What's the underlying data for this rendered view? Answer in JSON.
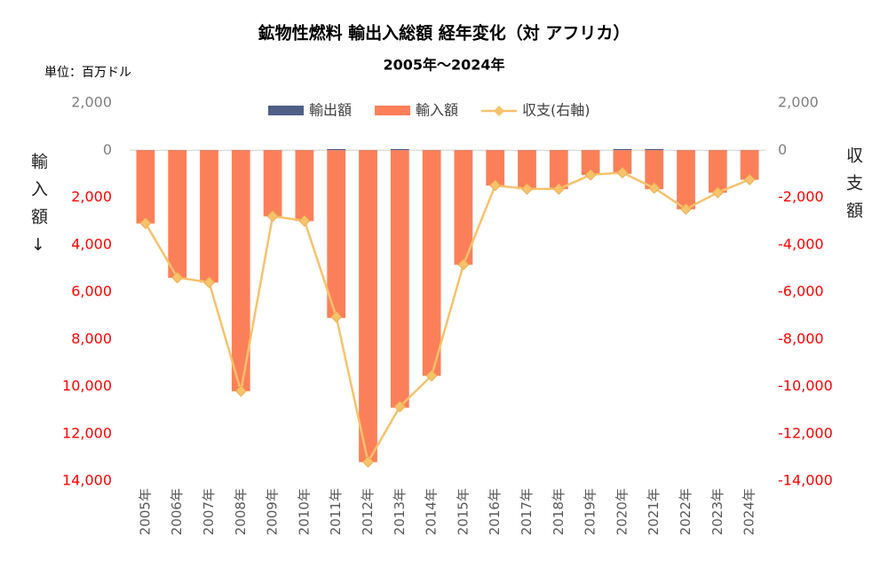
{
  "chart_data": {
    "type": "bar_line",
    "title": "鉱物性燃料 輸出入総額 経年変化（対 アフリカ）",
    "subtitle": "2005年～2024年",
    "unit_label": "単位：百万ドル",
    "ylabel": "輸入額↓",
    "y2label": "収支額",
    "categories": [
      "2005年",
      "2006年",
      "2007年",
      "2008年",
      "2009年",
      "2010年",
      "2011年",
      "2012年",
      "2013年",
      "2014年",
      "2015年",
      "2016年",
      "2017年",
      "2018年",
      "2019年",
      "2020年",
      "2021年",
      "2022年",
      "2023年",
      "2024年"
    ],
    "series": [
      {
        "name": "輸出額",
        "color": "#4f5f86",
        "values": [
          10,
          10,
          10,
          10,
          10,
          10,
          50,
          10,
          50,
          10,
          10,
          10,
          10,
          10,
          10,
          50,
          50,
          10,
          10,
          10
        ]
      },
      {
        "name": "輸入額",
        "color": "#fb8059",
        "values": [
          -3100,
          -5400,
          -5600,
          -10200,
          -2800,
          -3000,
          -7100,
          -13200,
          -10900,
          -9550,
          -4850,
          -1500,
          -1650,
          -1650,
          -1050,
          -1000,
          -1650,
          -2500,
          -1800,
          -1250
        ]
      },
      {
        "name": "収支(右軸)",
        "color": "#f6c26b",
        "axis": "y2",
        "values": [
          -3090,
          -5390,
          -5590,
          -10190,
          -2790,
          -2990,
          -7050,
          -13190,
          -10850,
          -9540,
          -4840,
          -1490,
          -1640,
          -1640,
          -1040,
          -950,
          -1600,
          -2490,
          -1790,
          -1240
        ]
      }
    ],
    "ylim": [
      -14000,
      2000
    ],
    "yticks": [
      {
        "value": 2000,
        "label": "2,000"
      },
      0,
      {
        "value": -2000,
        "label": "2,000"
      },
      {
        "value": -4000,
        "label": "4,000"
      },
      {
        "value": -6000,
        "label": "6,000"
      },
      {
        "value": -8000,
        "label": "8,000"
      },
      {
        "value": -10000,
        "label": "10,000"
      },
      {
        "value": -12000,
        "label": "12,000"
      },
      {
        "value": -14000,
        "label": "14,000"
      }
    ],
    "y2lim": [
      -14000,
      2000
    ],
    "y2ticks": [
      {
        "value": 2000,
        "label": "2,000"
      },
      0,
      {
        "value": -2000,
        "label": "-2,000"
      },
      {
        "value": -4000,
        "label": "-4,000"
      },
      {
        "value": -6000,
        "label": "-6,000"
      },
      {
        "value": -8000,
        "label": "-8,000"
      },
      {
        "value": -10000,
        "label": "-10,000"
      },
      {
        "value": -12000,
        "label": "-12,000"
      },
      {
        "value": -14000,
        "label": "-14,000"
      }
    ],
    "tick_color": "#7f7f7f",
    "negative_tick_color": "#ff0000",
    "legend": "top",
    "grid": false
  }
}
